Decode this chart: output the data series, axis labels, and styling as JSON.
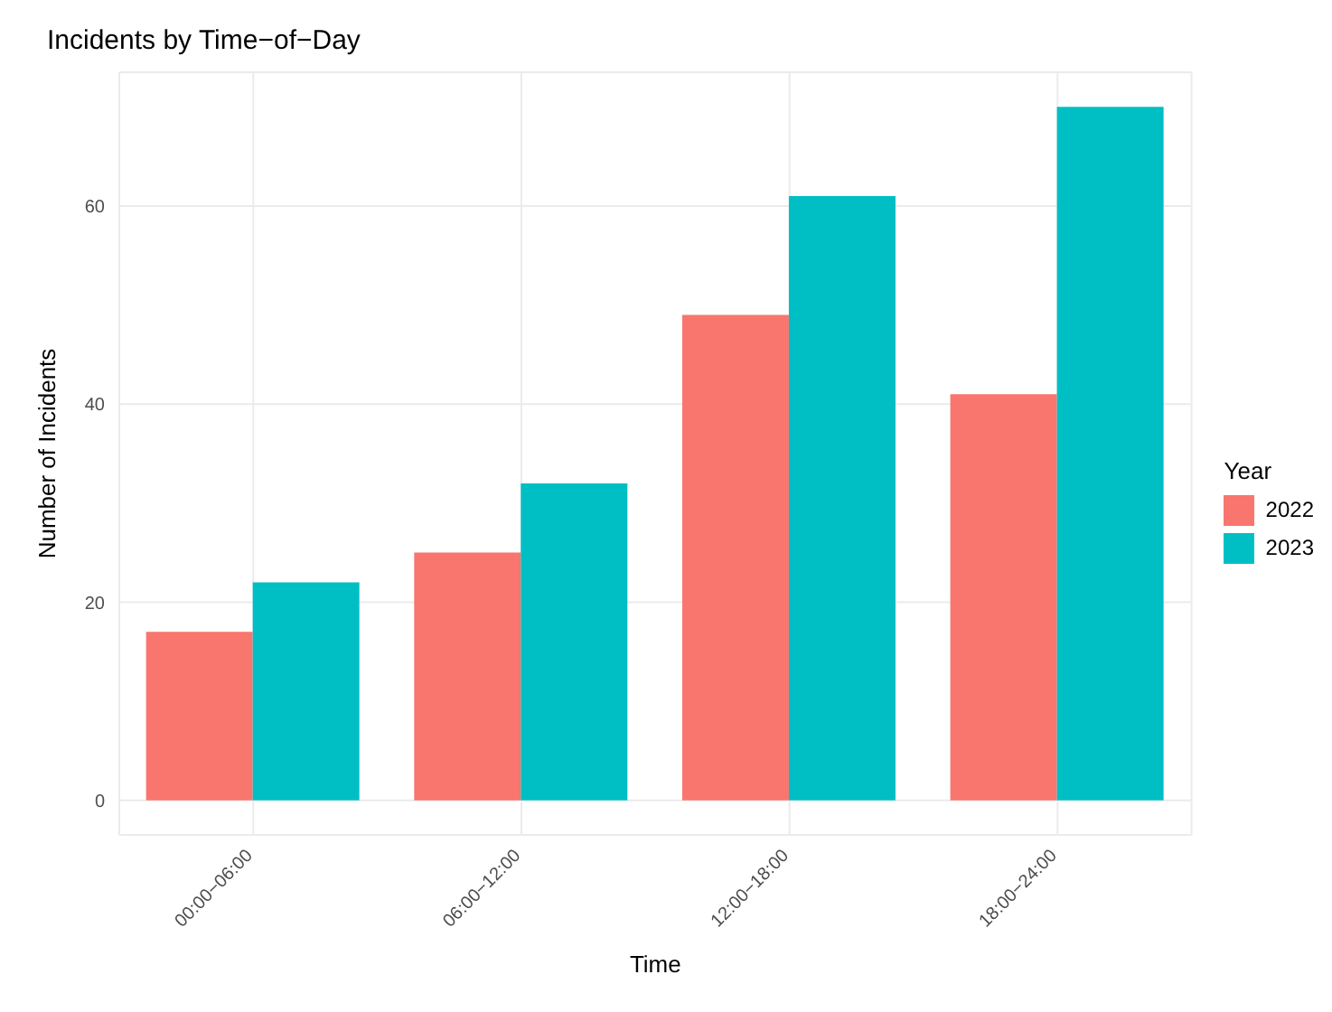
{
  "chart_data": {
    "type": "bar",
    "title": "Incidents by Time−of−Day",
    "xlabel": "Time",
    "ylabel": "Number of Incidents",
    "legend_title": "Year",
    "categories": [
      "00:00−06:00",
      "06:00−12:00",
      "12:00−18:00",
      "18:00−24:00"
    ],
    "series": [
      {
        "name": "2022",
        "color": "#f8766d",
        "values": [
          17,
          25,
          49,
          41
        ]
      },
      {
        "name": "2023",
        "color": "#00bfc4",
        "values": [
          22,
          32,
          61,
          70
        ]
      }
    ],
    "ylim": [
      -3.5,
      73.5
    ],
    "yticks": [
      0,
      20,
      40,
      60
    ],
    "grid": true,
    "legend": "right"
  }
}
